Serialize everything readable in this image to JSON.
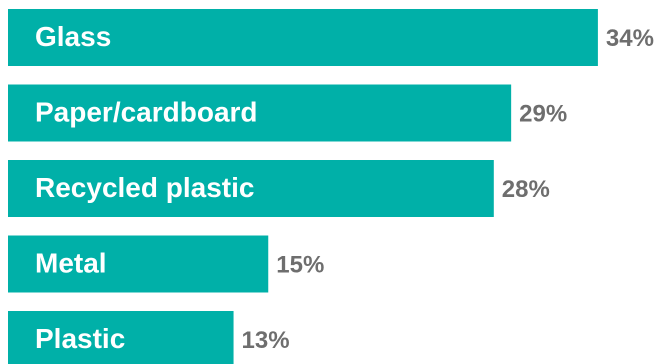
{
  "chart_data": {
    "type": "bar",
    "orientation": "horizontal",
    "categories": [
      "Glass",
      "Paper/cardboard",
      "Recycled plastic",
      "Metal",
      "Plastic"
    ],
    "values": [
      34,
      29,
      28,
      15,
      13
    ],
    "value_labels": [
      "34%",
      "29%",
      "28%",
      "15%",
      "13%"
    ],
    "unit": "%",
    "xlim": [
      0,
      35
    ],
    "grid": false,
    "legend": "none",
    "colors": {
      "bar": "#00b0a8",
      "bar_text": "#ffffff",
      "value_text": "#6e6e6e"
    }
  }
}
